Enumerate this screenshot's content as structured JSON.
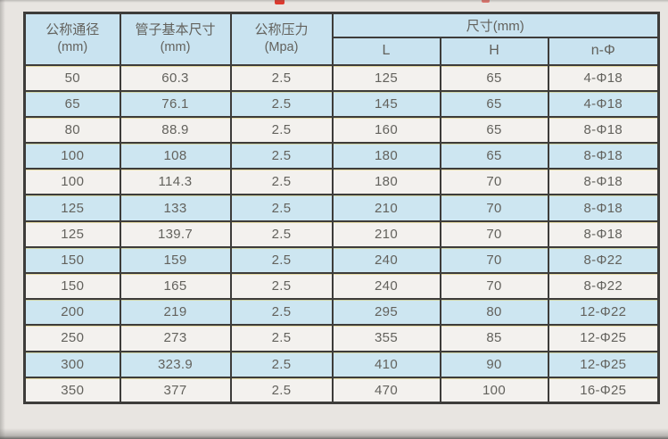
{
  "colors": {
    "page_bg": "#e8e5e1",
    "row_blue": "#cde6f1",
    "row_white": "#f3f1ee",
    "header_blue": "#c9e3f0",
    "border": "#3d3c3a",
    "text": "#63625d",
    "accent_red": "#e0392e"
  },
  "table": {
    "headers": {
      "col1_line1": "公称通径",
      "col1_line2": "(mm)",
      "col2_line1": "管子基本尺寸",
      "col2_line2": "(mm)",
      "col3_line1": "公称压力",
      "col3_line2": "(Mpa)",
      "group": "尺寸(mm)",
      "sub": [
        "L",
        "H",
        "n-Φ"
      ]
    },
    "rows": [
      [
        "50",
        "60.3",
        "2.5",
        "125",
        "65",
        "4-Φ18"
      ],
      [
        "65",
        "76.1",
        "2.5",
        "145",
        "65",
        "4-Φ18"
      ],
      [
        "80",
        "88.9",
        "2.5",
        "160",
        "65",
        "8-Φ18"
      ],
      [
        "100",
        "108",
        "2.5",
        "180",
        "65",
        "8-Φ18"
      ],
      [
        "100",
        "114.3",
        "2.5",
        "180",
        "70",
        "8-Φ18"
      ],
      [
        "125",
        "133",
        "2.5",
        "210",
        "70",
        "8-Φ18"
      ],
      [
        "125",
        "139.7",
        "2.5",
        "210",
        "70",
        "8-Φ18"
      ],
      [
        "150",
        "159",
        "2.5",
        "240",
        "70",
        "8-Φ22"
      ],
      [
        "150",
        "165",
        "2.5",
        "240",
        "70",
        "8-Φ22"
      ],
      [
        "200",
        "219",
        "2.5",
        "295",
        "80",
        "12-Φ22"
      ],
      [
        "250",
        "273",
        "2.5",
        "355",
        "85",
        "12-Φ25"
      ],
      [
        "300",
        "323.9",
        "2.5",
        "410",
        "90",
        "12-Φ25"
      ],
      [
        "350",
        "377",
        "2.5",
        "470",
        "100",
        "16-Φ25"
      ]
    ]
  }
}
